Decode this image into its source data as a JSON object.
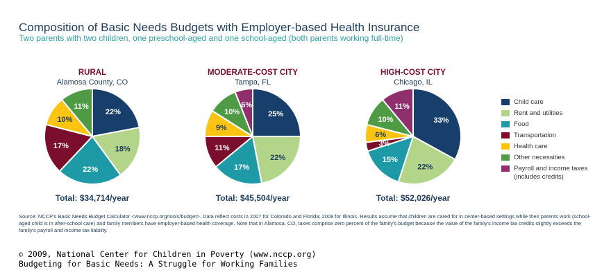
{
  "header": {
    "title": "Composition of Basic Needs Budgets with Employer-based Health Insurance",
    "subtitle": "Two parents with two children, one preschool-aged and one school-aged (both parents working full-time)"
  },
  "colors": {
    "Child care": "#183f6b",
    "Rent and utilities": "#b2d58a",
    "Food": "#1d9aa5",
    "Transportation": "#7a0e2c",
    "Health care": "#fbc312",
    "Other necessities": "#4f9a45",
    "Payroll and income taxes": "#8f2f6e",
    "heading": "#7a0e2c",
    "total": "#1f3d5c"
  },
  "legend": [
    {
      "key": "Child care",
      "label": "Child care"
    },
    {
      "key": "Rent and utilities",
      "label": "Rent and utilities"
    },
    {
      "key": "Food",
      "label": "Food"
    },
    {
      "key": "Transportation",
      "label": "Transportation"
    },
    {
      "key": "Health care",
      "label": "Health care"
    },
    {
      "key": "Other necessities",
      "label": "Other necessities"
    },
    {
      "key": "Payroll and income taxes",
      "label": "Payroll and income taxes (includes credits)"
    }
  ],
  "chart_data": [
    {
      "type": "pie",
      "title": "RURAL",
      "subtitle": "Alamosa County, CO",
      "total": "Total: $34,714/year",
      "categories": [
        "Child care",
        "Rent and utilities",
        "Food",
        "Transportation",
        "Health care",
        "Other necessities"
      ],
      "values": [
        22,
        18,
        22,
        17,
        10,
        11
      ],
      "labels": [
        "22%",
        "18%",
        "22%",
        "17%",
        "10%",
        "11%"
      ]
    },
    {
      "type": "pie",
      "title": "MODERATE-COST CITY",
      "subtitle": "Tampa, FL",
      "total": "Total: $45,504/year",
      "categories": [
        "Child care",
        "Rent and utilities",
        "Food",
        "Transportation",
        "Health care",
        "Other necessities",
        "Payroll and income taxes"
      ],
      "values": [
        25,
        22,
        17,
        11,
        9,
        10,
        6
      ],
      "labels": [
        "25%",
        "22%",
        "17%",
        "11%",
        "9%",
        "10%",
        "6%"
      ]
    },
    {
      "type": "pie",
      "title": "HIGH-COST CITY",
      "subtitle": "Chicago, IL",
      "total": "Total: $52,026/year",
      "categories": [
        "Child care",
        "Rent and utilities",
        "Food",
        "Transportation",
        "Health care",
        "Other necessities",
        "Payroll and income taxes"
      ],
      "values": [
        33,
        22,
        15,
        3,
        6,
        10,
        11
      ],
      "labels": [
        "33%",
        "22%",
        "15%",
        "3%",
        "6%",
        "10%",
        "11%"
      ]
    }
  ],
  "source": "Source: NCCP's Basic Needs Budget Calculator <www.nccp.org/tools/budget>. Data reflect costs in 2007 for Colorado and Florida; 2008 for Illinois. Results assume that children are cared for in center-based settings while their parents work (school-aged child is in after-school care) and family members have employer-based health coverage. Note that in Alamosa, CO, taxes comprise zero percent of the family's budget because the value of the family's income tax credits slightly exceeds the family's payroll and income tax liability.",
  "credit": {
    "copyright_symbol": "©",
    "line1": "2009, National Center for Children in Poverty (www.nccp.org)",
    "line2": "Budgeting for Basic Needs: A Struggle for Working Families"
  }
}
